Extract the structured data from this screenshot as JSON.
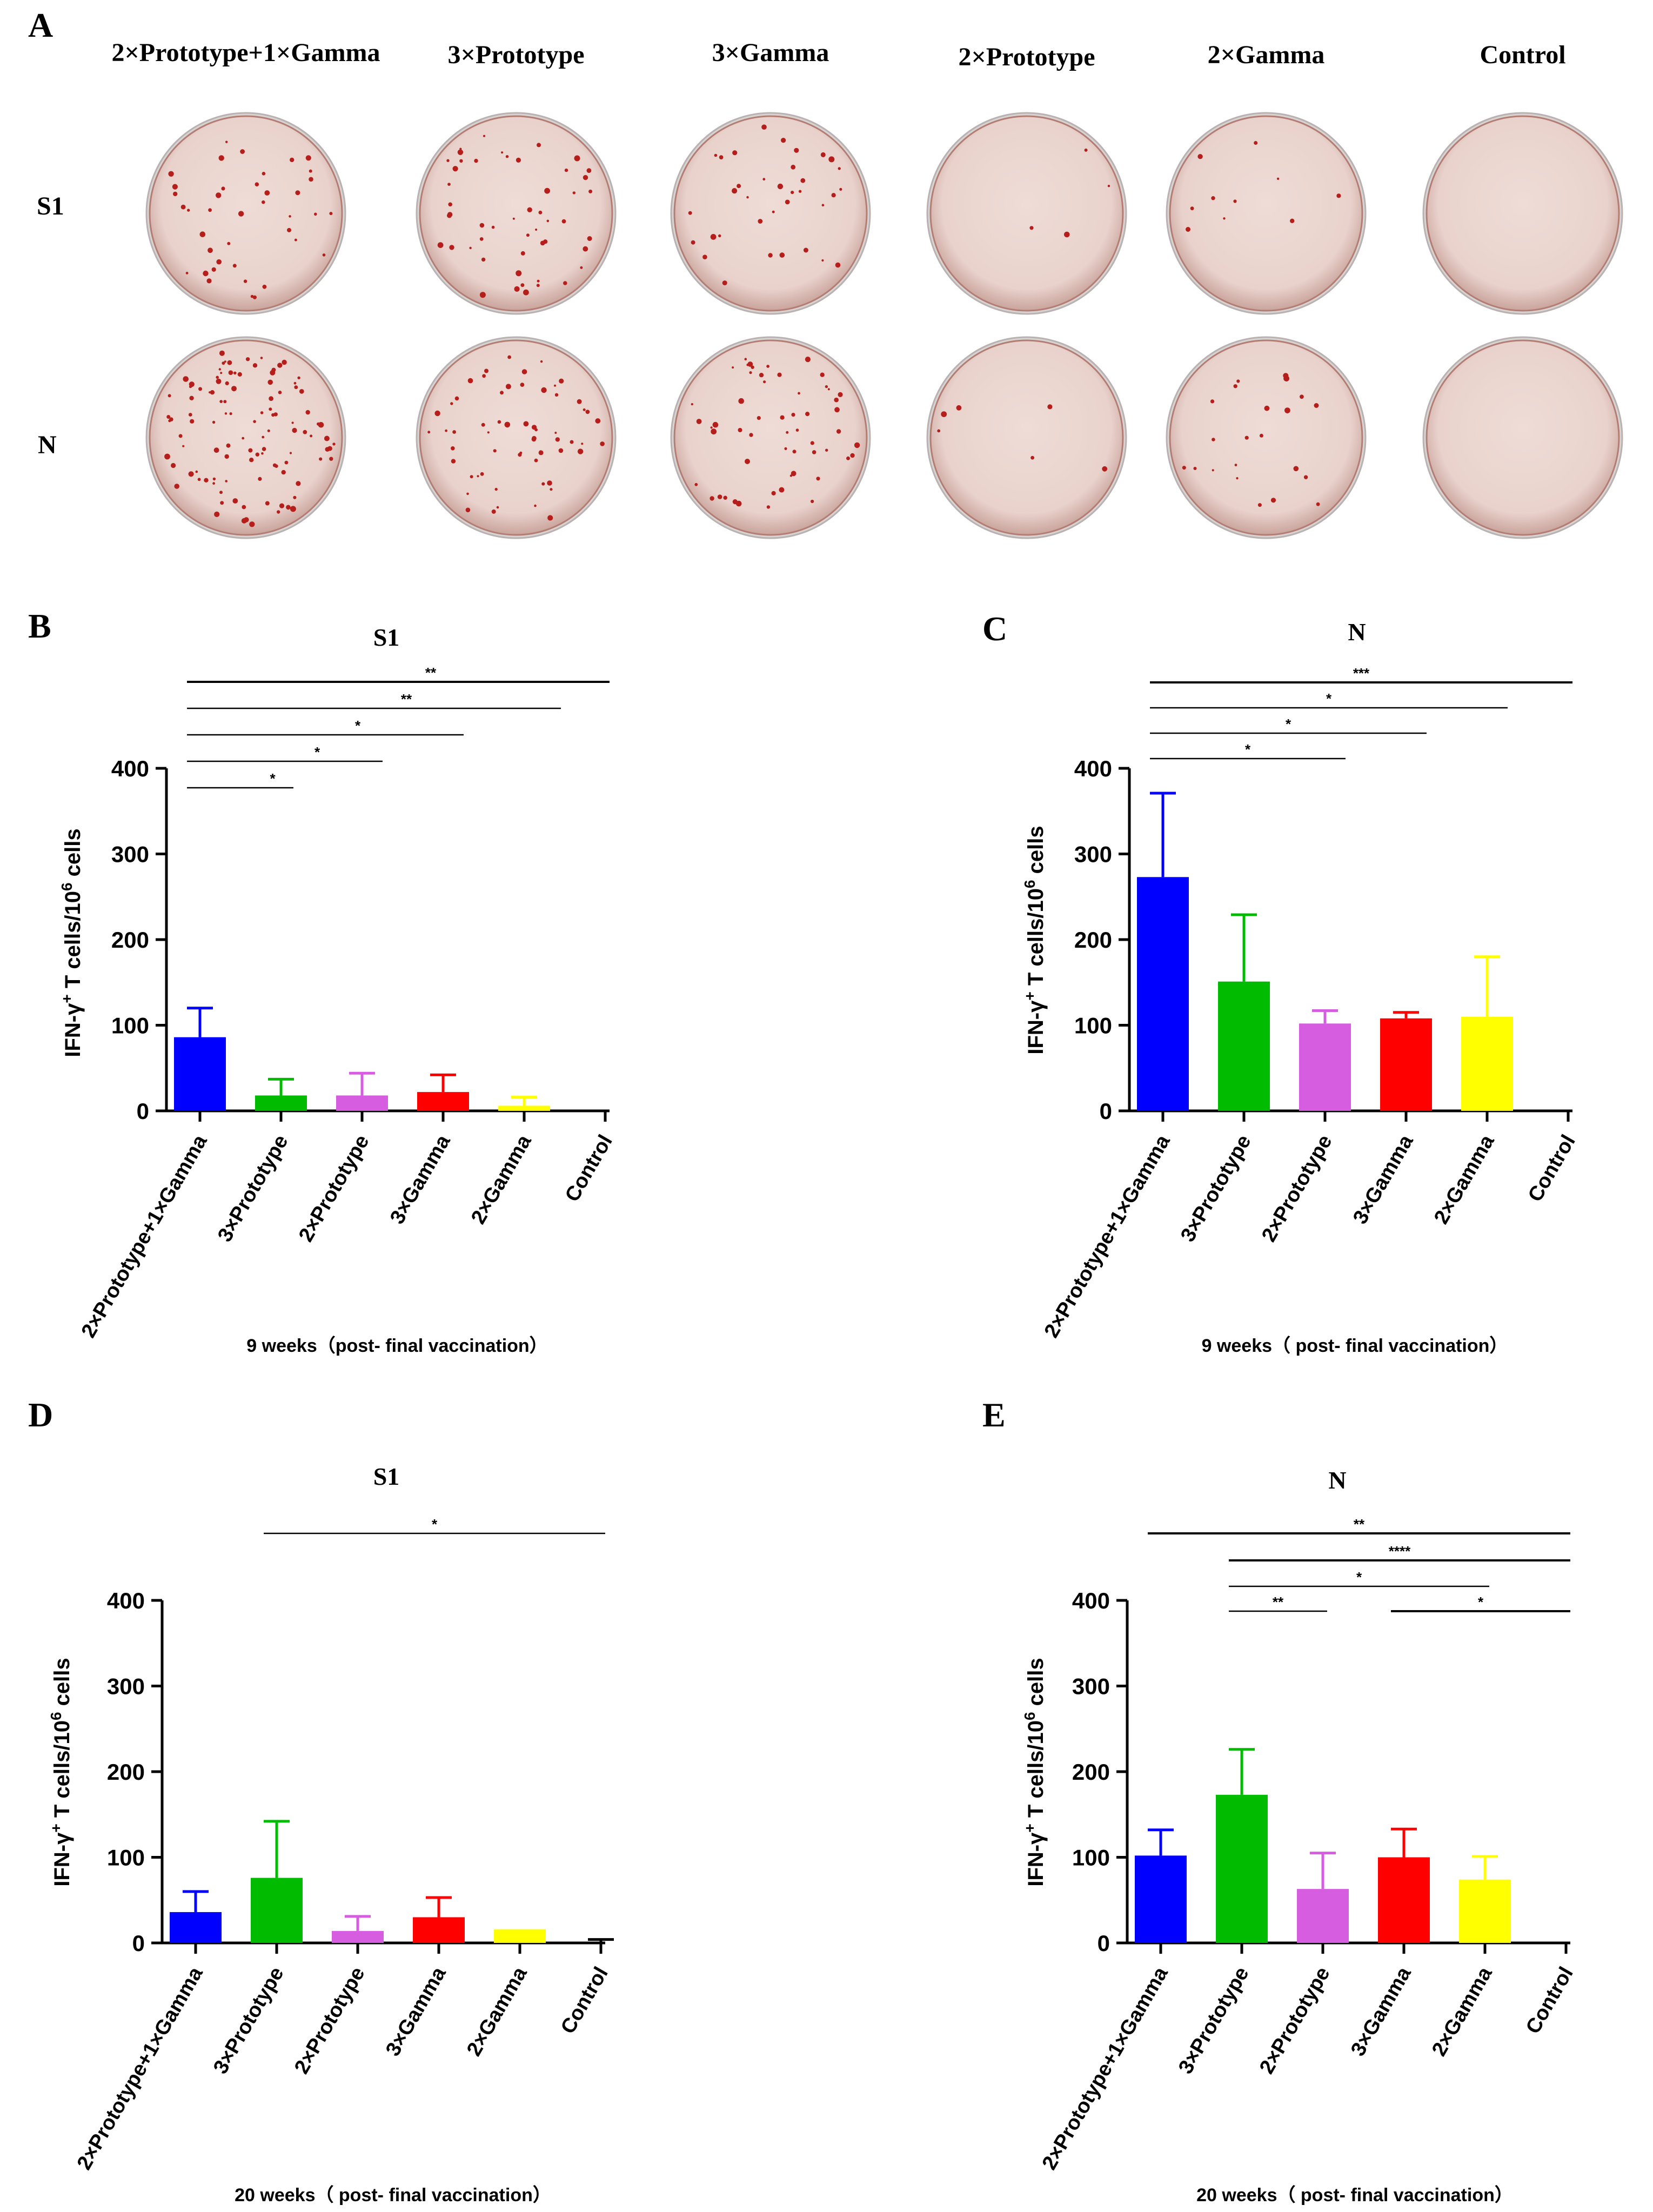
{
  "panel_a": {
    "letter": "A",
    "groups": [
      "2×Prototype+1×Gamma",
      "3×Prototype",
      "3×Gamma",
      "2×Prototype",
      "2×Gamma",
      "Control"
    ],
    "rows": [
      "S1",
      "N"
    ],
    "dish_color": "#e9d2cc",
    "spot_color": "#b51e1a"
  },
  "chart_data": [
    {
      "panel": "B",
      "type": "bar",
      "title": "S1",
      "xlabel": "9 weeks（post- final vaccination）",
      "ylabel": "IFN-γ+ T cells/106 cells",
      "ylim": [
        0,
        400
      ],
      "yticks": [
        0,
        100,
        200,
        300,
        400
      ],
      "categories": [
        "2×Prototype+1×Gamma",
        "3×Prototype",
        "2×Prototype",
        "3×Gamma",
        "2×Gamma",
        "Control"
      ],
      "values": [
        86,
        18,
        18,
        22,
        6,
        0
      ],
      "errors": [
        34,
        19,
        26,
        20,
        10,
        0
      ],
      "colors": [
        "#0000ff",
        "#00bb00",
        "#d65ce0",
        "#ff0000",
        "#ffff00",
        "#000000"
      ],
      "significance": [
        {
          "from": 0,
          "to": 5,
          "label": "**"
        },
        {
          "from": 0,
          "to": 4.4,
          "label": "**"
        },
        {
          "from": 0,
          "to": 3.2,
          "label": "*"
        },
        {
          "from": 0,
          "to": 2.2,
          "label": "*"
        },
        {
          "from": 0,
          "to": 1.1,
          "label": "*"
        }
      ]
    },
    {
      "panel": "C",
      "type": "bar",
      "title": "N",
      "xlabel": "9 weeks（ post- final vaccination）",
      "ylabel": "IFN-γ+ T cells/106 cells",
      "ylim": [
        0,
        400
      ],
      "yticks": [
        0,
        100,
        200,
        300,
        400
      ],
      "categories": [
        "2×Prototype+1×Gamma",
        "3×Prototype",
        "2×Prototype",
        "3×Gamma",
        "2×Gamma",
        "Control"
      ],
      "values": [
        273,
        151,
        102,
        108,
        110,
        0
      ],
      "errors": [
        98,
        78,
        15,
        7,
        70,
        0
      ],
      "colors": [
        "#0000ff",
        "#00bb00",
        "#d65ce0",
        "#ff0000",
        "#ffff00",
        "#000000"
      ],
      "significance": [
        {
          "from": 0,
          "to": 5,
          "label": "***"
        },
        {
          "from": 0,
          "to": 4.2,
          "label": "*"
        },
        {
          "from": 0,
          "to": 3.2,
          "label": "*"
        },
        {
          "from": 0,
          "to": 2.2,
          "label": "*"
        }
      ]
    },
    {
      "panel": "D",
      "type": "bar",
      "title": "S1",
      "xlabel": "20 weeks（ post- final vaccination）",
      "ylabel": "IFN-γ+ T cells/106 cells",
      "ylim": [
        0,
        400
      ],
      "yticks": [
        0,
        100,
        200,
        300,
        400
      ],
      "categories": [
        "2×Prototype+1×Gamma",
        "3×Prototype",
        "2×Prototype",
        "3×Gamma",
        "2×Gamma",
        "Control"
      ],
      "values": [
        36,
        76,
        14,
        30,
        16,
        0
      ],
      "errors": [
        24,
        66,
        17,
        23,
        0,
        4
      ],
      "colors": [
        "#0000ff",
        "#00bb00",
        "#d65ce0",
        "#ff0000",
        "#ffff00",
        "#000000"
      ],
      "significance": [
        {
          "from": 1,
          "to": 5,
          "label": "*"
        }
      ]
    },
    {
      "panel": "E",
      "type": "bar",
      "title": "N",
      "xlabel": "20 weeks（ post- final vaccination）",
      "ylabel": "IFN-γ+ T cells/106 cells",
      "ylim": [
        0,
        400
      ],
      "yticks": [
        0,
        100,
        200,
        300,
        400
      ],
      "categories": [
        "2×Prototype+1×Gamma",
        "3×Prototype",
        "2×Prototype",
        "3×Gamma",
        "2×Gamma",
        "Control"
      ],
      "values": [
        102,
        173,
        63,
        100,
        74,
        0
      ],
      "errors": [
        30,
        53,
        42,
        33,
        27,
        0
      ],
      "colors": [
        "#0000ff",
        "#00bb00",
        "#d65ce0",
        "#ff0000",
        "#ffff00",
        "#000000"
      ],
      "significance": [
        {
          "from": 0,
          "to": 5,
          "label": "**"
        },
        {
          "from": 1,
          "to": 5,
          "label": "****"
        },
        {
          "from": 1,
          "to": 4,
          "label": "*"
        },
        {
          "from": 1,
          "to": 2,
          "label": "**"
        },
        {
          "from": 3,
          "to": 5,
          "label": "*"
        }
      ]
    }
  ]
}
